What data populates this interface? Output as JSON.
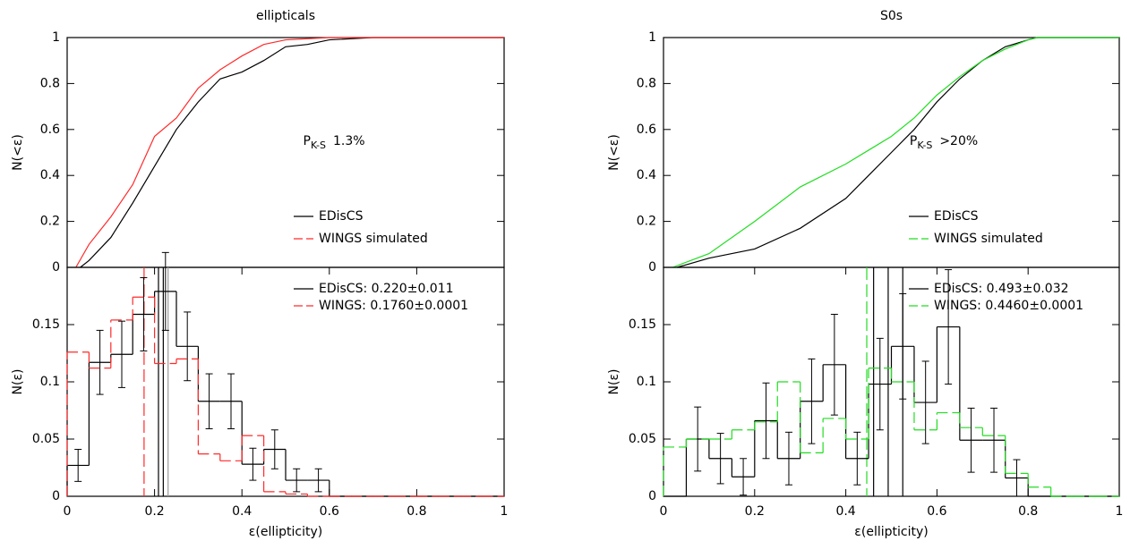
{
  "chart_data": [
    {
      "type": "line",
      "title": "ellipticals",
      "ylabel": "N(<ε)",
      "xlim": [
        0,
        1
      ],
      "ylim": [
        0,
        1
      ],
      "yticks": [
        0,
        0.2,
        0.4,
        0.6,
        0.8,
        1
      ],
      "legend": "lower right",
      "annotation": {
        "main": "P",
        "sub": "K-S",
        "text": "1.3%"
      },
      "series": [
        {
          "name": "EDisCS",
          "color": "#000000",
          "x": [
            0.03,
            0.05,
            0.1,
            0.15,
            0.2,
            0.25,
            0.3,
            0.35,
            0.4,
            0.45,
            0.5,
            0.55,
            0.6,
            0.7,
            1
          ],
          "values": [
            0,
            0.03,
            0.13,
            0.28,
            0.44,
            0.6,
            0.72,
            0.82,
            0.85,
            0.9,
            0.96,
            0.97,
            0.99,
            1,
            1
          ]
        },
        {
          "name": "WINGS simulated",
          "color": "#ff2a2a",
          "dash": true,
          "x": [
            0.02,
            0.05,
            0.1,
            0.15,
            0.2,
            0.25,
            0.3,
            0.35,
            0.4,
            0.45,
            0.5,
            0.6,
            1
          ],
          "values": [
            0,
            0.1,
            0.22,
            0.36,
            0.57,
            0.65,
            0.78,
            0.86,
            0.92,
            0.97,
            0.99,
            1,
            1
          ]
        }
      ]
    },
    {
      "type": "histogram",
      "ylabel": "N(ε)",
      "xlabel": "ε(ellipticity)",
      "xlim": [
        0,
        1
      ],
      "ylim": [
        0,
        0.2
      ],
      "xticks": [
        0,
        0.2,
        0.4,
        0.6,
        0.8,
        1
      ],
      "yticks": [
        0,
        0.05,
        0.1,
        0.15
      ],
      "legend": "upper right",
      "bins": [
        0,
        0.05,
        0.1,
        0.15,
        0.2,
        0.25,
        0.3,
        0.35,
        0.4,
        0.45,
        0.5,
        0.55,
        0.6,
        0.65,
        0.7,
        0.75,
        0.8,
        0.85,
        0.9,
        0.95,
        1
      ],
      "series": [
        {
          "name": "EDisCS: 0.220±0.011",
          "color": "#000000",
          "values": [
            0.027,
            0.117,
            0.124,
            0.159,
            0.179,
            0.131,
            0.083,
            0.083,
            0.028,
            0.041,
            0.014,
            0.014,
            0,
            0,
            0,
            0,
            0,
            0,
            0,
            0
          ],
          "errors": [
            0.014,
            0.028,
            0.029,
            0.032,
            0.034,
            0.03,
            0.024,
            0.024,
            0.014,
            0.017,
            0.01,
            0.01,
            0,
            0,
            0,
            0,
            0,
            0,
            0,
            0
          ]
        },
        {
          "name": "WINGS: 0.1760±0.0001",
          "color": "#ff2a2a",
          "dash": true,
          "values": [
            0.126,
            0.112,
            0.154,
            0.174,
            0.116,
            0.12,
            0.037,
            0.031,
            0.053,
            0.004,
            0.002,
            0,
            0,
            0,
            0,
            0,
            0,
            0,
            0,
            0
          ]
        }
      ],
      "vlines": [
        {
          "x": 0.209,
          "color": "#000000"
        },
        {
          "x": 0.22,
          "color": "#000000"
        },
        {
          "x": 0.231,
          "color": "#999999"
        },
        {
          "x": 0.176,
          "color": "#ff2a2a",
          "dash": true
        }
      ]
    },
    {
      "type": "line",
      "title": "S0s",
      "ylabel": "N(<ε)",
      "xlim": [
        0,
        1
      ],
      "ylim": [
        0,
        1
      ],
      "yticks": [
        0,
        0.2,
        0.4,
        0.6,
        0.8,
        1
      ],
      "legend": "lower right",
      "annotation": {
        "main": "P",
        "sub": "K-S",
        "text": ">20%"
      },
      "series": [
        {
          "name": "EDisCS",
          "color": "#000000",
          "x": [
            0.03,
            0.1,
            0.2,
            0.3,
            0.4,
            0.45,
            0.5,
            0.55,
            0.6,
            0.65,
            0.7,
            0.75,
            0.8,
            0.82,
            1
          ],
          "values": [
            0,
            0.04,
            0.08,
            0.17,
            0.3,
            0.4,
            0.5,
            0.6,
            0.72,
            0.82,
            0.9,
            0.96,
            0.99,
            1,
            1
          ]
        },
        {
          "name": "WINGS simulated",
          "color": "#22dd22",
          "dash": true,
          "x": [
            0.02,
            0.1,
            0.2,
            0.3,
            0.4,
            0.45,
            0.5,
            0.55,
            0.6,
            0.65,
            0.7,
            0.75,
            0.8,
            0.82,
            1
          ],
          "values": [
            0,
            0.06,
            0.2,
            0.35,
            0.45,
            0.51,
            0.57,
            0.65,
            0.75,
            0.83,
            0.9,
            0.95,
            0.99,
            1,
            1
          ]
        }
      ]
    },
    {
      "type": "histogram",
      "ylabel": "N(ε)",
      "xlabel": "ε(ellipticity)",
      "xlim": [
        0,
        1
      ],
      "ylim": [
        0,
        0.2
      ],
      "xticks": [
        0,
        0.2,
        0.4,
        0.6,
        0.8,
        1
      ],
      "yticks": [
        0,
        0.05,
        0.1,
        0.15
      ],
      "legend": "upper right",
      "bins": [
        0,
        0.05,
        0.1,
        0.15,
        0.2,
        0.25,
        0.3,
        0.35,
        0.4,
        0.45,
        0.5,
        0.55,
        0.6,
        0.65,
        0.7,
        0.75,
        0.8,
        0.85,
        0.9,
        0.95,
        1
      ],
      "series": [
        {
          "name": "EDisCS: 0.493±0.032",
          "color": "#000000",
          "values": [
            0,
            0.05,
            0.033,
            0.017,
            0.066,
            0.033,
            0.083,
            0.115,
            0.033,
            0.098,
            0.131,
            0.082,
            0.148,
            0.049,
            0.049,
            0.016,
            0,
            0,
            0,
            0
          ],
          "errors": [
            0,
            0.028,
            0.022,
            0.016,
            0.033,
            0.023,
            0.037,
            0.044,
            0.023,
            0.04,
            0.046,
            0.036,
            0.05,
            0.028,
            0.028,
            0.016,
            0,
            0,
            0,
            0
          ]
        },
        {
          "name": "WINGS: 0.4460±0.0001",
          "color": "#22dd22",
          "dash": true,
          "values": [
            0.043,
            0.05,
            0.05,
            0.058,
            0.065,
            0.1,
            0.038,
            0.068,
            0.05,
            0.112,
            0.1,
            0.058,
            0.073,
            0.06,
            0.053,
            0.02,
            0.008,
            0,
            0,
            0
          ]
        }
      ],
      "vlines": [
        {
          "x": 0.461,
          "color": "#000000"
        },
        {
          "x": 0.493,
          "color": "#000000"
        },
        {
          "x": 0.525,
          "color": "#000000"
        },
        {
          "x": 0.446,
          "color": "#22dd22",
          "dash": true
        }
      ]
    }
  ]
}
